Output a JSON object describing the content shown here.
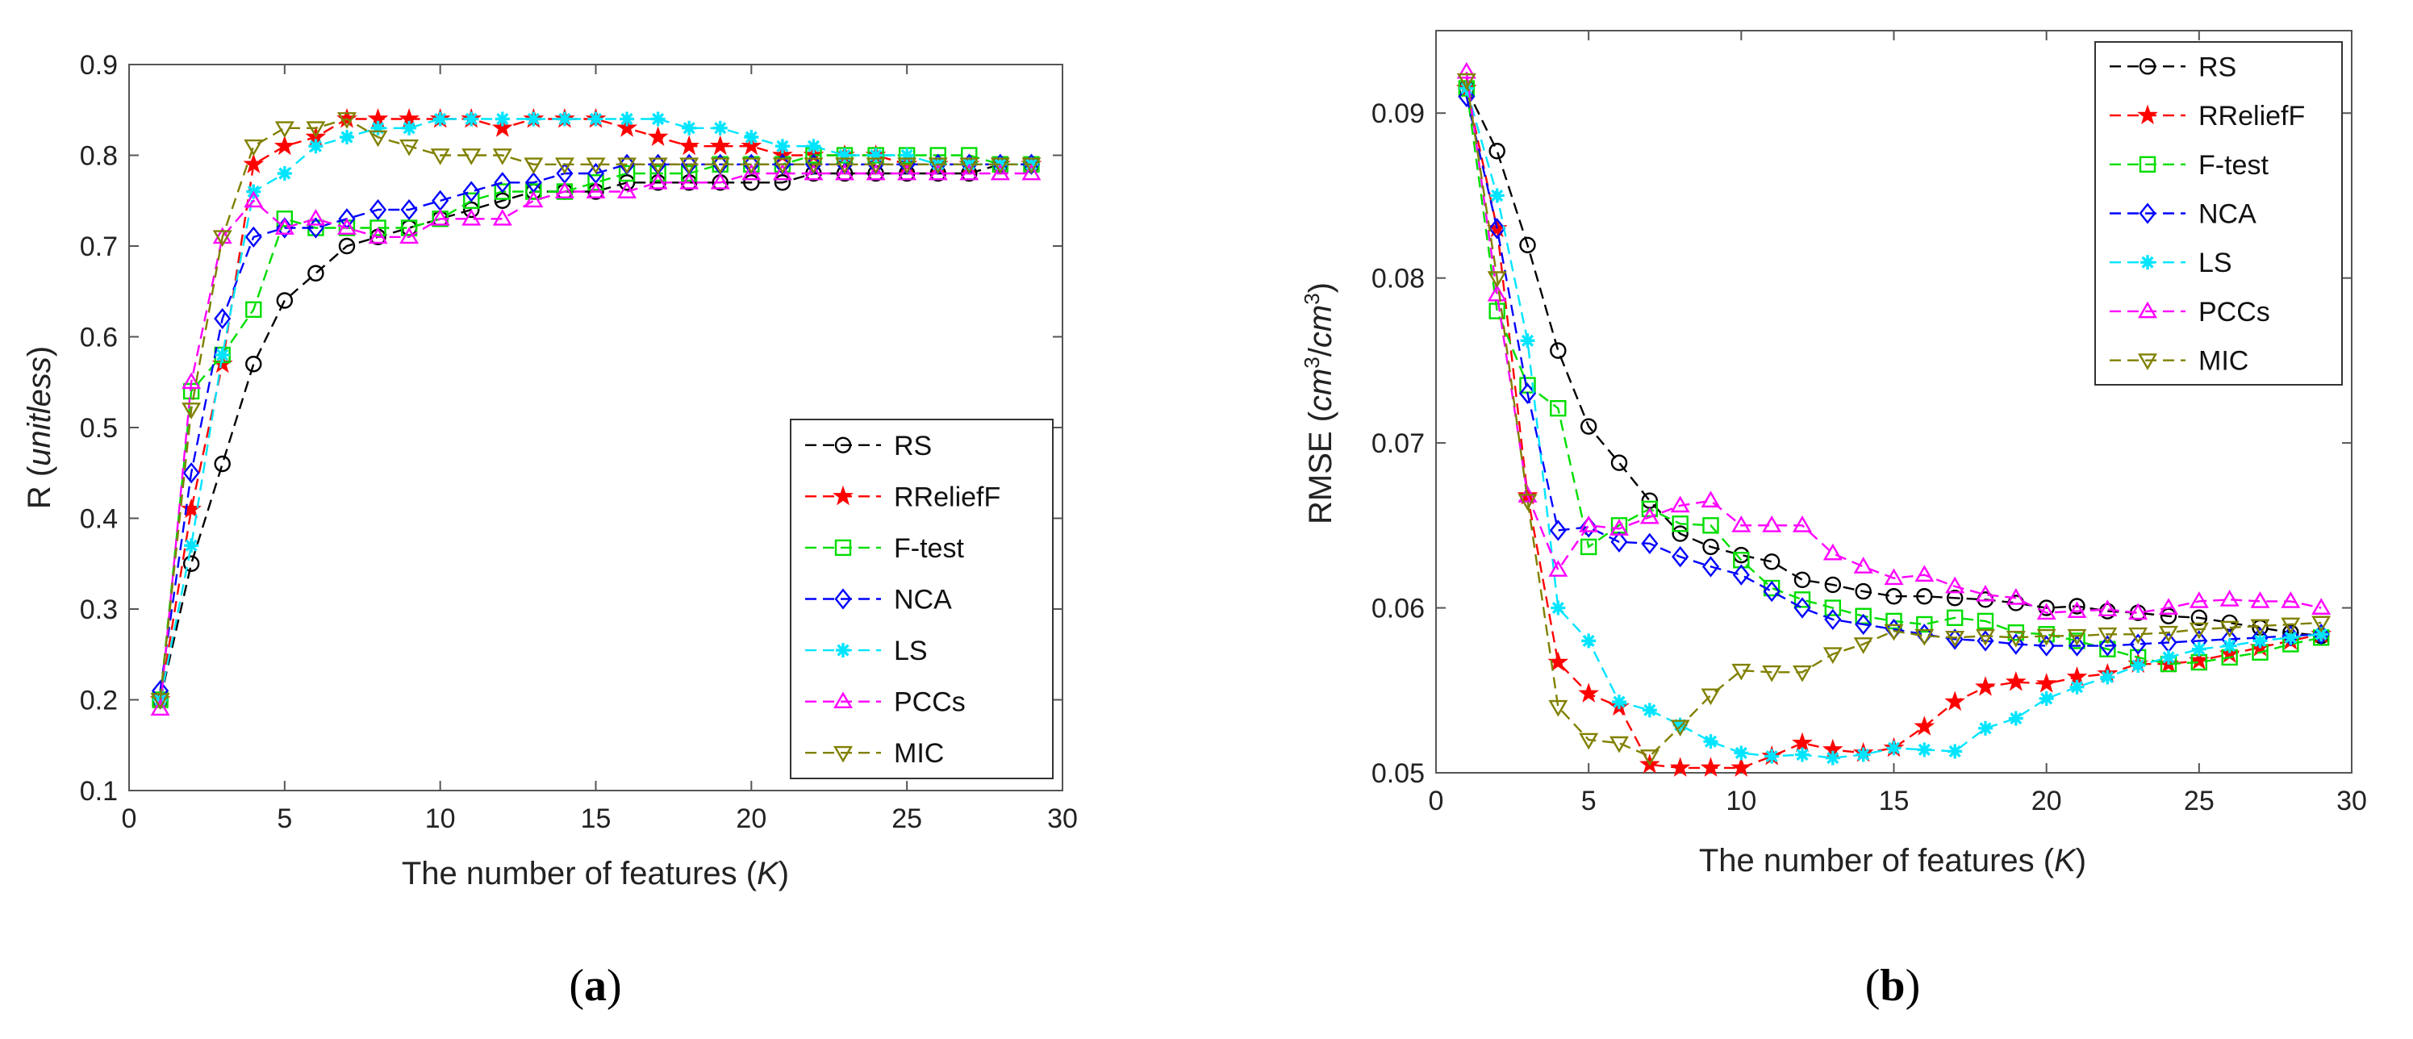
{
  "chart_data": [
    {
      "type": "line",
      "x": [
        1,
        2,
        3,
        4,
        5,
        6,
        7,
        8,
        9,
        10,
        11,
        12,
        13,
        14,
        15,
        16,
        17,
        18,
        19,
        20,
        21,
        22,
        23,
        24,
        25,
        26,
        27,
        28,
        29
      ],
      "xlabel_main": "The number of features (",
      "xlabel_italic": "K",
      "xlabel_end": ")",
      "ylabel_main": "R (",
      "ylabel_italic": "unitless",
      "ylabel_end": ")",
      "xlim": [
        0,
        30
      ],
      "ylim": [
        0.1,
        0.9
      ],
      "xticks": [
        0,
        5,
        10,
        15,
        20,
        25,
        30
      ],
      "xtick_labels": [
        "0",
        "5",
        "10",
        "15",
        "20",
        "25",
        "30"
      ],
      "yticks": [
        0.1,
        0.2,
        0.3,
        0.4,
        0.5,
        0.6,
        0.7,
        0.8,
        0.9
      ],
      "ytick_labels": [
        "0.1",
        "0.2",
        "0.3",
        "0.4",
        "0.5",
        "0.6",
        "0.7",
        "0.8",
        "0.9"
      ],
      "grid": false,
      "legend_position": "lower-right",
      "caption_open": "(",
      "caption_letter": "a",
      "caption_close": ")",
      "series": [
        {
          "name": "RS",
          "color": "#000000",
          "marker": "circle",
          "values": [
            0.2,
            0.35,
            0.46,
            0.57,
            0.64,
            0.67,
            0.7,
            0.71,
            0.72,
            0.73,
            0.74,
            0.75,
            0.76,
            0.76,
            0.76,
            0.77,
            0.77,
            0.77,
            0.77,
            0.77,
            0.77,
            0.78,
            0.78,
            0.78,
            0.78,
            0.78,
            0.78,
            0.79,
            0.79
          ]
        },
        {
          "name": "RReliefF",
          "color": "#ff0000",
          "marker": "star",
          "values": [
            0.2,
            0.41,
            0.57,
            0.79,
            0.81,
            0.82,
            0.84,
            0.84,
            0.84,
            0.84,
            0.84,
            0.83,
            0.84,
            0.84,
            0.84,
            0.83,
            0.82,
            0.81,
            0.81,
            0.81,
            0.8,
            0.8,
            0.8,
            0.8,
            0.79,
            0.79,
            0.79,
            0.79,
            0.79
          ]
        },
        {
          "name": "F-test",
          "color": "#00dd00",
          "marker": "square",
          "values": [
            0.2,
            0.54,
            0.58,
            0.63,
            0.73,
            0.72,
            0.72,
            0.72,
            0.72,
            0.73,
            0.75,
            0.76,
            0.76,
            0.76,
            0.77,
            0.78,
            0.78,
            0.78,
            0.79,
            0.79,
            0.79,
            0.8,
            0.8,
            0.8,
            0.8,
            0.8,
            0.8,
            0.79,
            0.79
          ]
        },
        {
          "name": "NCA",
          "color": "#0000ff",
          "marker": "diamond",
          "values": [
            0.21,
            0.45,
            0.62,
            0.71,
            0.72,
            0.72,
            0.73,
            0.74,
            0.74,
            0.75,
            0.76,
            0.77,
            0.77,
            0.78,
            0.78,
            0.79,
            0.79,
            0.79,
            0.79,
            0.79,
            0.79,
            0.79,
            0.79,
            0.79,
            0.79,
            0.79,
            0.79,
            0.79,
            0.79
          ]
        },
        {
          "name": "LS",
          "color": "#00e5ff",
          "marker": "asterisk",
          "values": [
            0.2,
            0.37,
            0.58,
            0.76,
            0.78,
            0.81,
            0.82,
            0.83,
            0.83,
            0.84,
            0.84,
            0.84,
            0.84,
            0.84,
            0.84,
            0.84,
            0.84,
            0.83,
            0.83,
            0.82,
            0.81,
            0.81,
            0.8,
            0.8,
            0.8,
            0.79,
            0.79,
            0.79,
            0.79
          ]
        },
        {
          "name": "PCCs",
          "color": "#ff00ff",
          "marker": "triangle-up",
          "values": [
            0.19,
            0.55,
            0.71,
            0.75,
            0.72,
            0.73,
            0.72,
            0.71,
            0.71,
            0.73,
            0.73,
            0.73,
            0.75,
            0.76,
            0.76,
            0.76,
            0.77,
            0.77,
            0.77,
            0.78,
            0.78,
            0.78,
            0.78,
            0.78,
            0.78,
            0.78,
            0.78,
            0.78,
            0.78
          ]
        },
        {
          "name": "MIC",
          "color": "#808000",
          "marker": "triangle-down",
          "values": [
            0.2,
            0.52,
            0.71,
            0.81,
            0.83,
            0.83,
            0.84,
            0.82,
            0.81,
            0.8,
            0.8,
            0.8,
            0.79,
            0.79,
            0.79,
            0.79,
            0.79,
            0.79,
            0.79,
            0.79,
            0.79,
            0.79,
            0.79,
            0.79,
            0.79,
            0.79,
            0.79,
            0.79,
            0.79
          ]
        }
      ]
    },
    {
      "type": "line",
      "x": [
        1,
        2,
        3,
        4,
        5,
        6,
        7,
        8,
        9,
        10,
        11,
        12,
        13,
        14,
        15,
        16,
        17,
        18,
        19,
        20,
        21,
        22,
        23,
        24,
        25,
        26,
        27,
        28,
        29
      ],
      "xlabel_main": "The number of features (",
      "xlabel_italic": "K",
      "xlabel_end": ")",
      "ylabel_main": "RMSE (",
      "ylabel_italic_a": "cm",
      "ylabel_sup_a": "3",
      "ylabel_slash": "/",
      "ylabel_italic_b": "cm",
      "ylabel_sup_b": "3",
      "ylabel_end": ")",
      "xlim": [
        0,
        30
      ],
      "ylim": [
        0.05,
        0.095
      ],
      "xticks": [
        0,
        5,
        10,
        15,
        20,
        25,
        30
      ],
      "xtick_labels": [
        "0",
        "5",
        "10",
        "15",
        "20",
        "25",
        "30"
      ],
      "yticks": [
        0.05,
        0.06,
        0.07,
        0.08,
        0.09
      ],
      "ytick_labels": [
        "0.05",
        "0.06",
        "0.07",
        "0.08",
        "0.09"
      ],
      "grid": false,
      "legend_position": "upper-right",
      "caption_open": "(",
      "caption_letter": "b",
      "caption_close": ")",
      "series": [
        {
          "name": "RS",
          "color": "#000000",
          "marker": "circle",
          "values": [
            0.0915,
            0.0877,
            0.082,
            0.0756,
            0.071,
            0.0688,
            0.0665,
            0.0645,
            0.0637,
            0.0632,
            0.0628,
            0.0617,
            0.0614,
            0.061,
            0.0607,
            0.0607,
            0.0606,
            0.0605,
            0.0603,
            0.06,
            0.0601,
            0.0598,
            0.0597,
            0.0595,
            0.0594,
            0.0591,
            0.0588,
            0.0585,
            0.0583
          ]
        },
        {
          "name": "RReliefF",
          "color": "#ff0000",
          "marker": "star",
          "values": [
            0.0915,
            0.083,
            0.0668,
            0.0567,
            0.0548,
            0.054,
            0.0505,
            0.0503,
            0.0503,
            0.0503,
            0.051,
            0.0518,
            0.0514,
            0.0512,
            0.0515,
            0.0528,
            0.0543,
            0.0552,
            0.0555,
            0.0554,
            0.0558,
            0.056,
            0.0566,
            0.0566,
            0.0568,
            0.0572,
            0.0576,
            0.058,
            0.0584
          ]
        },
        {
          "name": "F-test",
          "color": "#00dd00",
          "marker": "square",
          "values": [
            0.0915,
            0.078,
            0.0735,
            0.0721,
            0.0637,
            0.065,
            0.066,
            0.0651,
            0.065,
            0.0629,
            0.0612,
            0.0605,
            0.06,
            0.0595,
            0.0592,
            0.059,
            0.0594,
            0.0592,
            0.0585,
            0.0584,
            0.058,
            0.0575,
            0.057,
            0.0566,
            0.0567,
            0.057,
            0.0573,
            0.0578,
            0.0582
          ]
        },
        {
          "name": "NCA",
          "color": "#0000ff",
          "marker": "diamond",
          "values": [
            0.091,
            0.083,
            0.073,
            0.0647,
            0.0649,
            0.064,
            0.0639,
            0.0631,
            0.0625,
            0.062,
            0.061,
            0.06,
            0.0593,
            0.059,
            0.0587,
            0.0584,
            0.0581,
            0.058,
            0.0578,
            0.0577,
            0.0577,
            0.0577,
            0.0578,
            0.0579,
            0.058,
            0.0581,
            0.0582,
            0.0583,
            0.0584
          ]
        },
        {
          "name": "LS",
          "color": "#00e5ff",
          "marker": "asterisk",
          "values": [
            0.0915,
            0.085,
            0.0762,
            0.06,
            0.058,
            0.0543,
            0.0538,
            0.0529,
            0.0519,
            0.0512,
            0.051,
            0.0511,
            0.0509,
            0.0511,
            0.0515,
            0.0514,
            0.0513,
            0.0527,
            0.0533,
            0.0545,
            0.0552,
            0.0558,
            0.0565,
            0.057,
            0.0575,
            0.0577,
            0.058,
            0.0582,
            0.0584
          ]
        },
        {
          "name": "PCCs",
          "color": "#ff00ff",
          "marker": "triangle-up",
          "values": [
            0.0925,
            0.079,
            0.0668,
            0.0623,
            0.065,
            0.0648,
            0.0655,
            0.0662,
            0.0665,
            0.065,
            0.065,
            0.065,
            0.0633,
            0.0625,
            0.0618,
            0.062,
            0.0613,
            0.0608,
            0.0606,
            0.0597,
            0.0598,
            0.0599,
            0.0597,
            0.06,
            0.0604,
            0.0605,
            0.0604,
            0.0604,
            0.06
          ]
        },
        {
          "name": "MIC",
          "color": "#808000",
          "marker": "triangle-down",
          "values": [
            0.092,
            0.08,
            0.0665,
            0.054,
            0.052,
            0.0518,
            0.051,
            0.0528,
            0.0547,
            0.0562,
            0.0561,
            0.0561,
            0.0572,
            0.0578,
            0.0586,
            0.0583,
            0.0582,
            0.0583,
            0.0582,
            0.0583,
            0.0583,
            0.0584,
            0.0584,
            0.0585,
            0.0587,
            0.0588,
            0.0589,
            0.059,
            0.0591
          ]
        }
      ]
    }
  ]
}
